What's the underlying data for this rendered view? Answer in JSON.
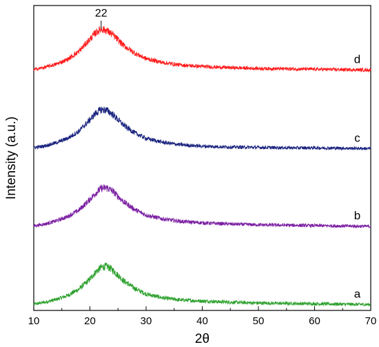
{
  "chart_data": {
    "type": "line",
    "title": "",
    "xlabel": "2θ",
    "ylabel": "Intensity (a.u.)",
    "xlim": [
      10,
      70
    ],
    "x_ticks": [
      10,
      20,
      30,
      40,
      50,
      60,
      70
    ],
    "x_tick_labels": [
      "10",
      "20",
      "30",
      "40",
      "50",
      "60",
      "70"
    ],
    "y_ticks_shown": false,
    "grid": false,
    "legend": "none",
    "annotations": [
      {
        "text": "22",
        "x": 22
      }
    ],
    "series": [
      {
        "name": "a",
        "color": "#2ca02c",
        "x": [
          10,
          12,
          14,
          16,
          18,
          20,
          21,
          22,
          23,
          24,
          25,
          26,
          28,
          30,
          33,
          36,
          40,
          45,
          50,
          55,
          60,
          65,
          70
        ],
        "y": [
          0.3,
          0.55,
          0.9,
          1.4,
          2.2,
          3.5,
          4.4,
          5.0,
          5.15,
          4.7,
          4.0,
          3.3,
          2.3,
          1.6,
          1.1,
          0.85,
          0.7,
          0.55,
          0.45,
          0.4,
          0.35,
          0.3,
          0.25
        ]
      },
      {
        "name": "b",
        "color": "#7b1fa2",
        "x": [
          10,
          12,
          14,
          16,
          18,
          20,
          21,
          22,
          23,
          24,
          25,
          26,
          28,
          30,
          33,
          36,
          40,
          45,
          50,
          55,
          60,
          65,
          70
        ],
        "y": [
          10.3,
          10.55,
          10.95,
          11.5,
          12.3,
          13.7,
          14.5,
          15.1,
          15.2,
          14.8,
          14.1,
          13.4,
          12.4,
          11.7,
          11.2,
          10.9,
          10.7,
          10.55,
          10.45,
          10.4,
          10.35,
          10.3,
          10.25
        ]
      },
      {
        "name": "c",
        "color": "#1a237e",
        "x": [
          10,
          12,
          14,
          16,
          18,
          20,
          21,
          22,
          23,
          24,
          25,
          26,
          28,
          30,
          33,
          36,
          40,
          45,
          50,
          55,
          60,
          65,
          70
        ],
        "y": [
          20.3,
          20.55,
          20.95,
          21.5,
          22.4,
          23.9,
          24.7,
          25.2,
          25.1,
          24.6,
          23.9,
          23.2,
          22.2,
          21.5,
          21.0,
          20.7,
          20.5,
          20.4,
          20.35,
          20.3,
          20.3,
          20.25,
          20.2
        ]
      },
      {
        "name": "d",
        "color": "#ff1a1a",
        "x": [
          10,
          12,
          14,
          16,
          18,
          20,
          21,
          22,
          23,
          24,
          25,
          26,
          28,
          30,
          33,
          36,
          40,
          45,
          50,
          55,
          60,
          65,
          70
        ],
        "y": [
          30.3,
          30.6,
          31.0,
          31.6,
          32.6,
          34.2,
          35.0,
          35.5,
          35.3,
          34.8,
          34.1,
          33.4,
          32.4,
          31.7,
          31.2,
          30.9,
          30.7,
          30.55,
          30.45,
          30.4,
          30.35,
          30.3,
          30.25
        ]
      }
    ],
    "ylim": [
      -0.5,
      38.5
    ],
    "noise_amplitude": 0.35
  }
}
